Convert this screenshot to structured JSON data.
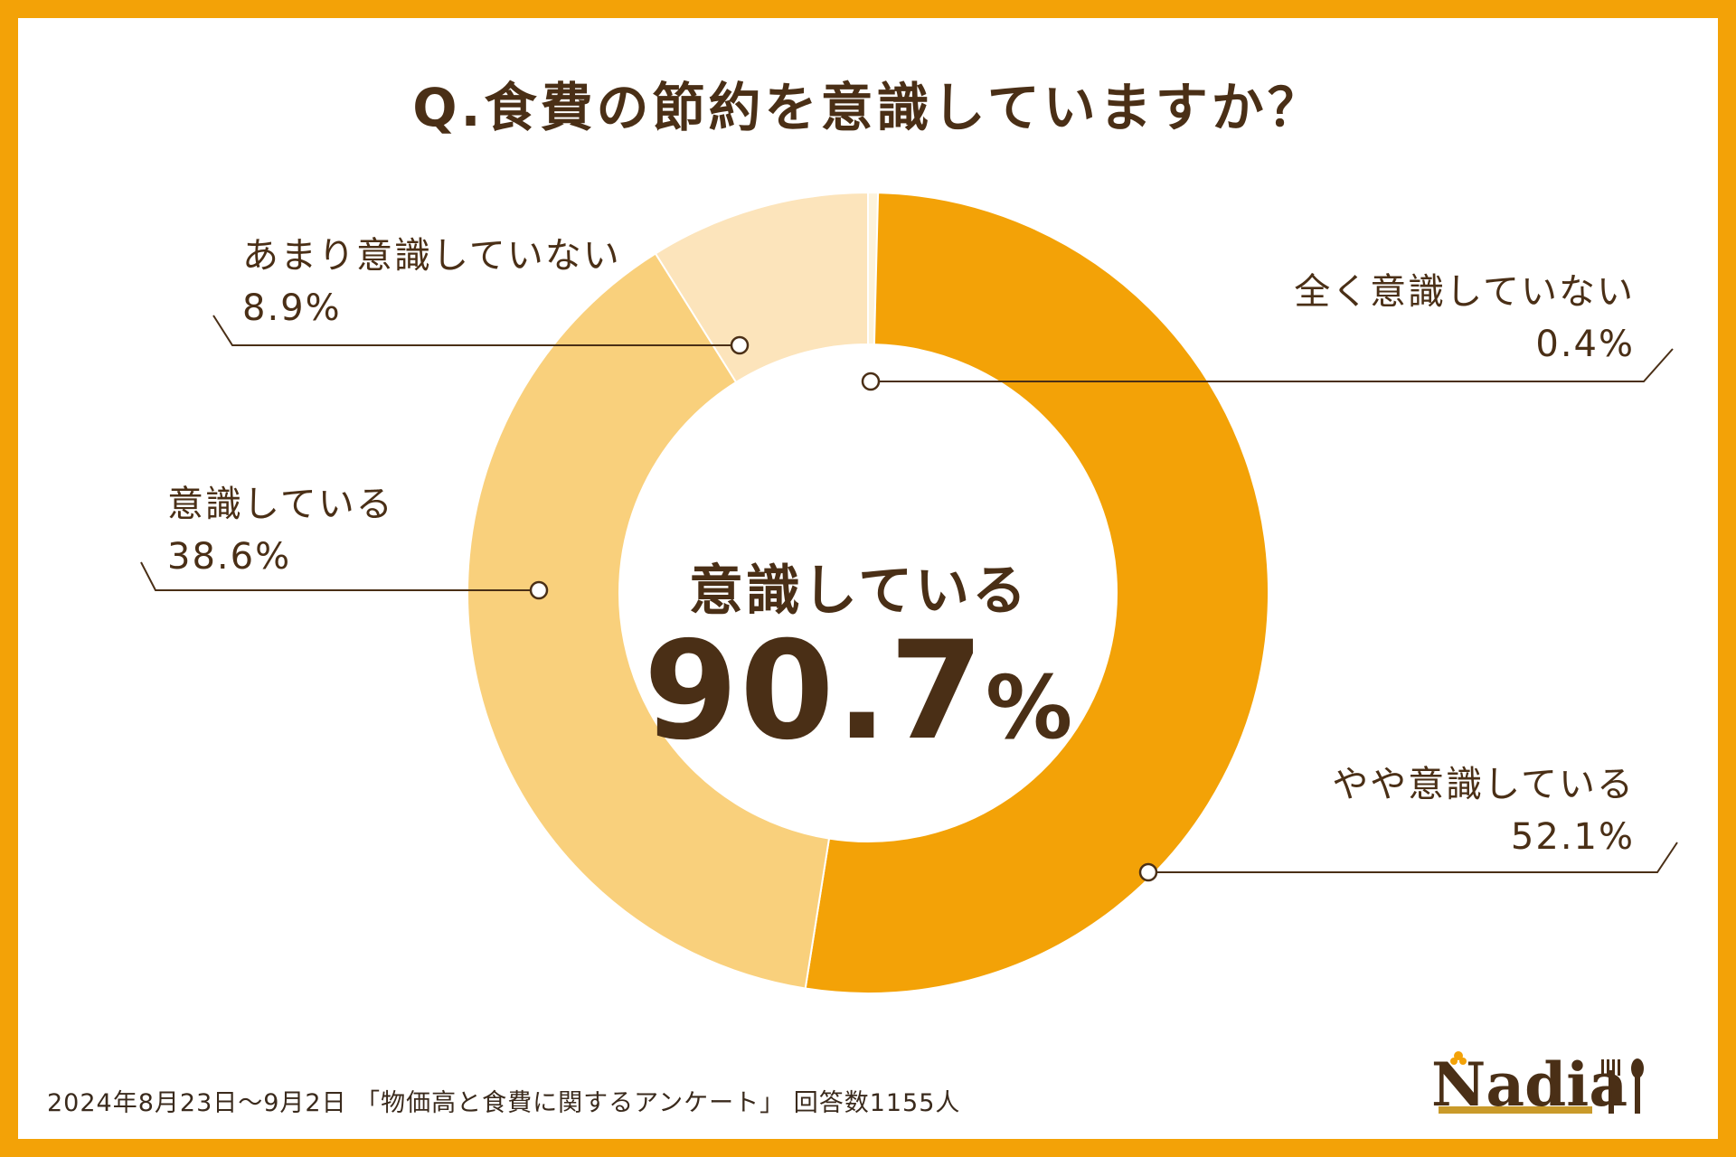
{
  "title": "Q.食費の節約を意識していますか？",
  "center": {
    "label": "意識している",
    "value": "90.7",
    "unit": "%"
  },
  "footer": "2024年8月23日～9月2日 「物価高と食費に関するアンケート」 回答数1155人",
  "logo": {
    "text": "Nadia"
  },
  "colors": {
    "frame": "#f3a207",
    "text": "#4a2f16",
    "slice_yaya": "#f3a207",
    "slice_ishiki": "#f9d07c",
    "slice_amari": "#fce4bb",
    "slice_mattaku": "#fdf3dc"
  },
  "chart_data": {
    "type": "pie",
    "variant": "donut",
    "categories": [
      "全く意識していない",
      "やや意識している",
      "意識している",
      "あまり意識していない"
    ],
    "values": [
      0.4,
      52.1,
      38.6,
      8.9
    ],
    "value_labels": [
      "0.4%",
      "52.1%",
      "38.6%",
      "8.9%"
    ],
    "unit": "%",
    "title": "Q.食費の節約を意識していますか？"
  }
}
